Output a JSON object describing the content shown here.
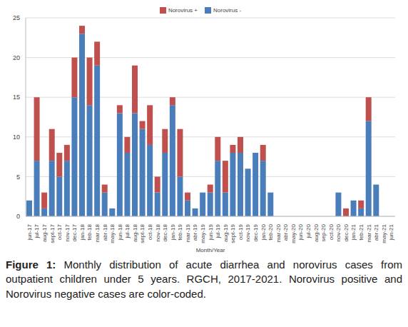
{
  "chart_data": {
    "type": "bar",
    "stacked": true,
    "grid": true,
    "legend": "top",
    "xlabel": "Month/Year",
    "caption": "Figure 1: Monthly distribution of acute diarrhea and norovirus cases from outpatient children under 5 years. RGCH, 2017-2021. Norovirus positive and Norovirus negative cases are color-coded.",
    "categories": [
      "jun-17",
      "jul-17",
      "aug-17",
      "sept-17",
      "oct-17",
      "nov-17",
      "dec-17",
      "jan-18",
      "feb-18",
      "mar-18",
      "abr-18",
      "may-18",
      "jun-18",
      "jul-18",
      "aug-18",
      "sept-18",
      "oct-18",
      "nov-18",
      "dec-18",
      "jan-19",
      "feb-19",
      "mar-19",
      "abr-19",
      "may-19",
      "jun-19",
      "jul-19",
      "aug-19",
      "sept-19",
      "oct-19",
      "nov-19",
      "dec-19",
      "jan-20",
      "feb-20",
      "mar-20",
      "abr-20",
      "may-20",
      "jun-20",
      "jul-20",
      "aug-20",
      "sep-20",
      "oct-20",
      "nov-20",
      "dec-20",
      "jan-21",
      "feb-21",
      "mar-21",
      "abr-21",
      "may-21",
      "jun-21"
    ],
    "series": [
      {
        "name": "Norovirus +",
        "color": "#c0504d",
        "values": [
          0,
          8,
          2,
          4,
          3,
          2,
          5,
          1,
          6,
          3,
          1,
          0,
          1,
          2,
          6,
          1,
          5,
          2,
          3,
          1,
          6,
          1,
          0,
          0,
          1,
          3,
          4,
          1,
          2,
          0,
          0,
          2,
          0,
          0,
          0,
          0,
          0,
          0,
          0,
          0,
          0,
          0,
          1,
          0,
          1,
          3,
          0,
          0,
          0
        ]
      },
      {
        "name": "Norovirus -",
        "color": "#4a7ebb",
        "values": [
          2,
          7,
          1,
          7,
          5,
          7,
          15,
          23,
          14,
          19,
          3,
          1,
          13,
          8,
          13,
          11,
          9,
          3,
          8,
          14,
          5,
          2,
          1,
          3,
          3,
          7,
          3,
          8,
          8,
          6,
          8,
          7,
          3,
          0,
          0,
          0,
          0,
          0,
          0,
          0,
          0,
          3,
          0,
          2,
          1,
          12,
          4,
          0,
          0
        ]
      }
    ],
    "ylim": [
      0,
      25
    ],
    "yticks": [
      0,
      5,
      10,
      15,
      20,
      25
    ]
  }
}
